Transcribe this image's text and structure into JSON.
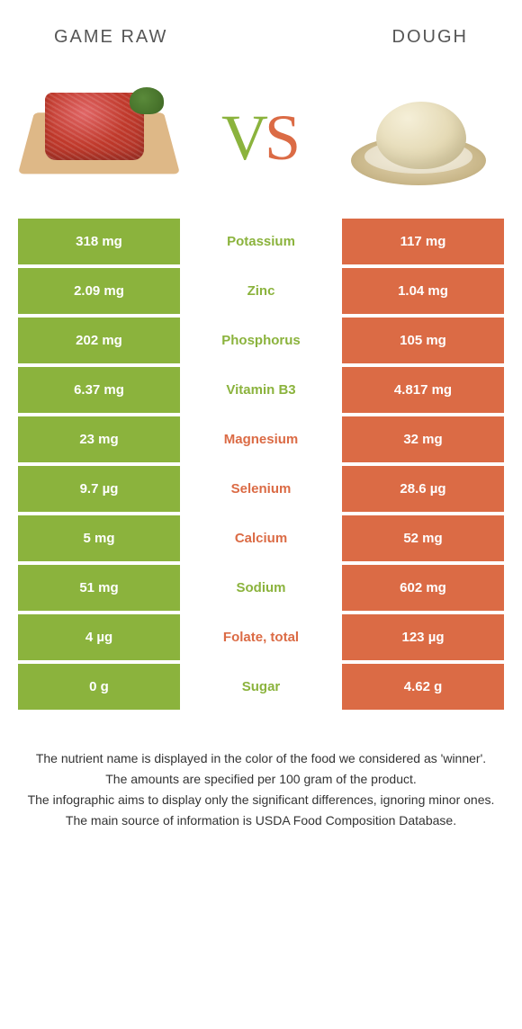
{
  "colors": {
    "left": "#8bb33d",
    "right": "#db6b45"
  },
  "header": {
    "left_title": "Game raw",
    "right_title": "Dough"
  },
  "vs": {
    "v": "V",
    "s": "S"
  },
  "rows": [
    {
      "left": "318 mg",
      "label": "Potassium",
      "right": "117 mg",
      "winner": "left"
    },
    {
      "left": "2.09 mg",
      "label": "Zinc",
      "right": "1.04 mg",
      "winner": "left"
    },
    {
      "left": "202 mg",
      "label": "Phosphorus",
      "right": "105 mg",
      "winner": "left"
    },
    {
      "left": "6.37 mg",
      "label": "Vitamin B3",
      "right": "4.817 mg",
      "winner": "left"
    },
    {
      "left": "23 mg",
      "label": "Magnesium",
      "right": "32 mg",
      "winner": "right"
    },
    {
      "left": "9.7 µg",
      "label": "Selenium",
      "right": "28.6 µg",
      "winner": "right"
    },
    {
      "left": "5 mg",
      "label": "Calcium",
      "right": "52 mg",
      "winner": "right"
    },
    {
      "left": "51 mg",
      "label": "Sodium",
      "right": "602 mg",
      "winner": "left"
    },
    {
      "left": "4 µg",
      "label": "Folate, total",
      "right": "123 µg",
      "winner": "right"
    },
    {
      "left": "0 g",
      "label": "Sugar",
      "right": "4.62 g",
      "winner": "left"
    }
  ],
  "footer": {
    "line1": "The nutrient name is displayed in the color of the food we considered as 'winner'.",
    "line2": "The amounts are specified per 100 gram of the product.",
    "line3": "The infographic aims to display only the significant differences, ignoring minor ones.",
    "line4": "The main source of information is USDA Food Composition Database."
  }
}
